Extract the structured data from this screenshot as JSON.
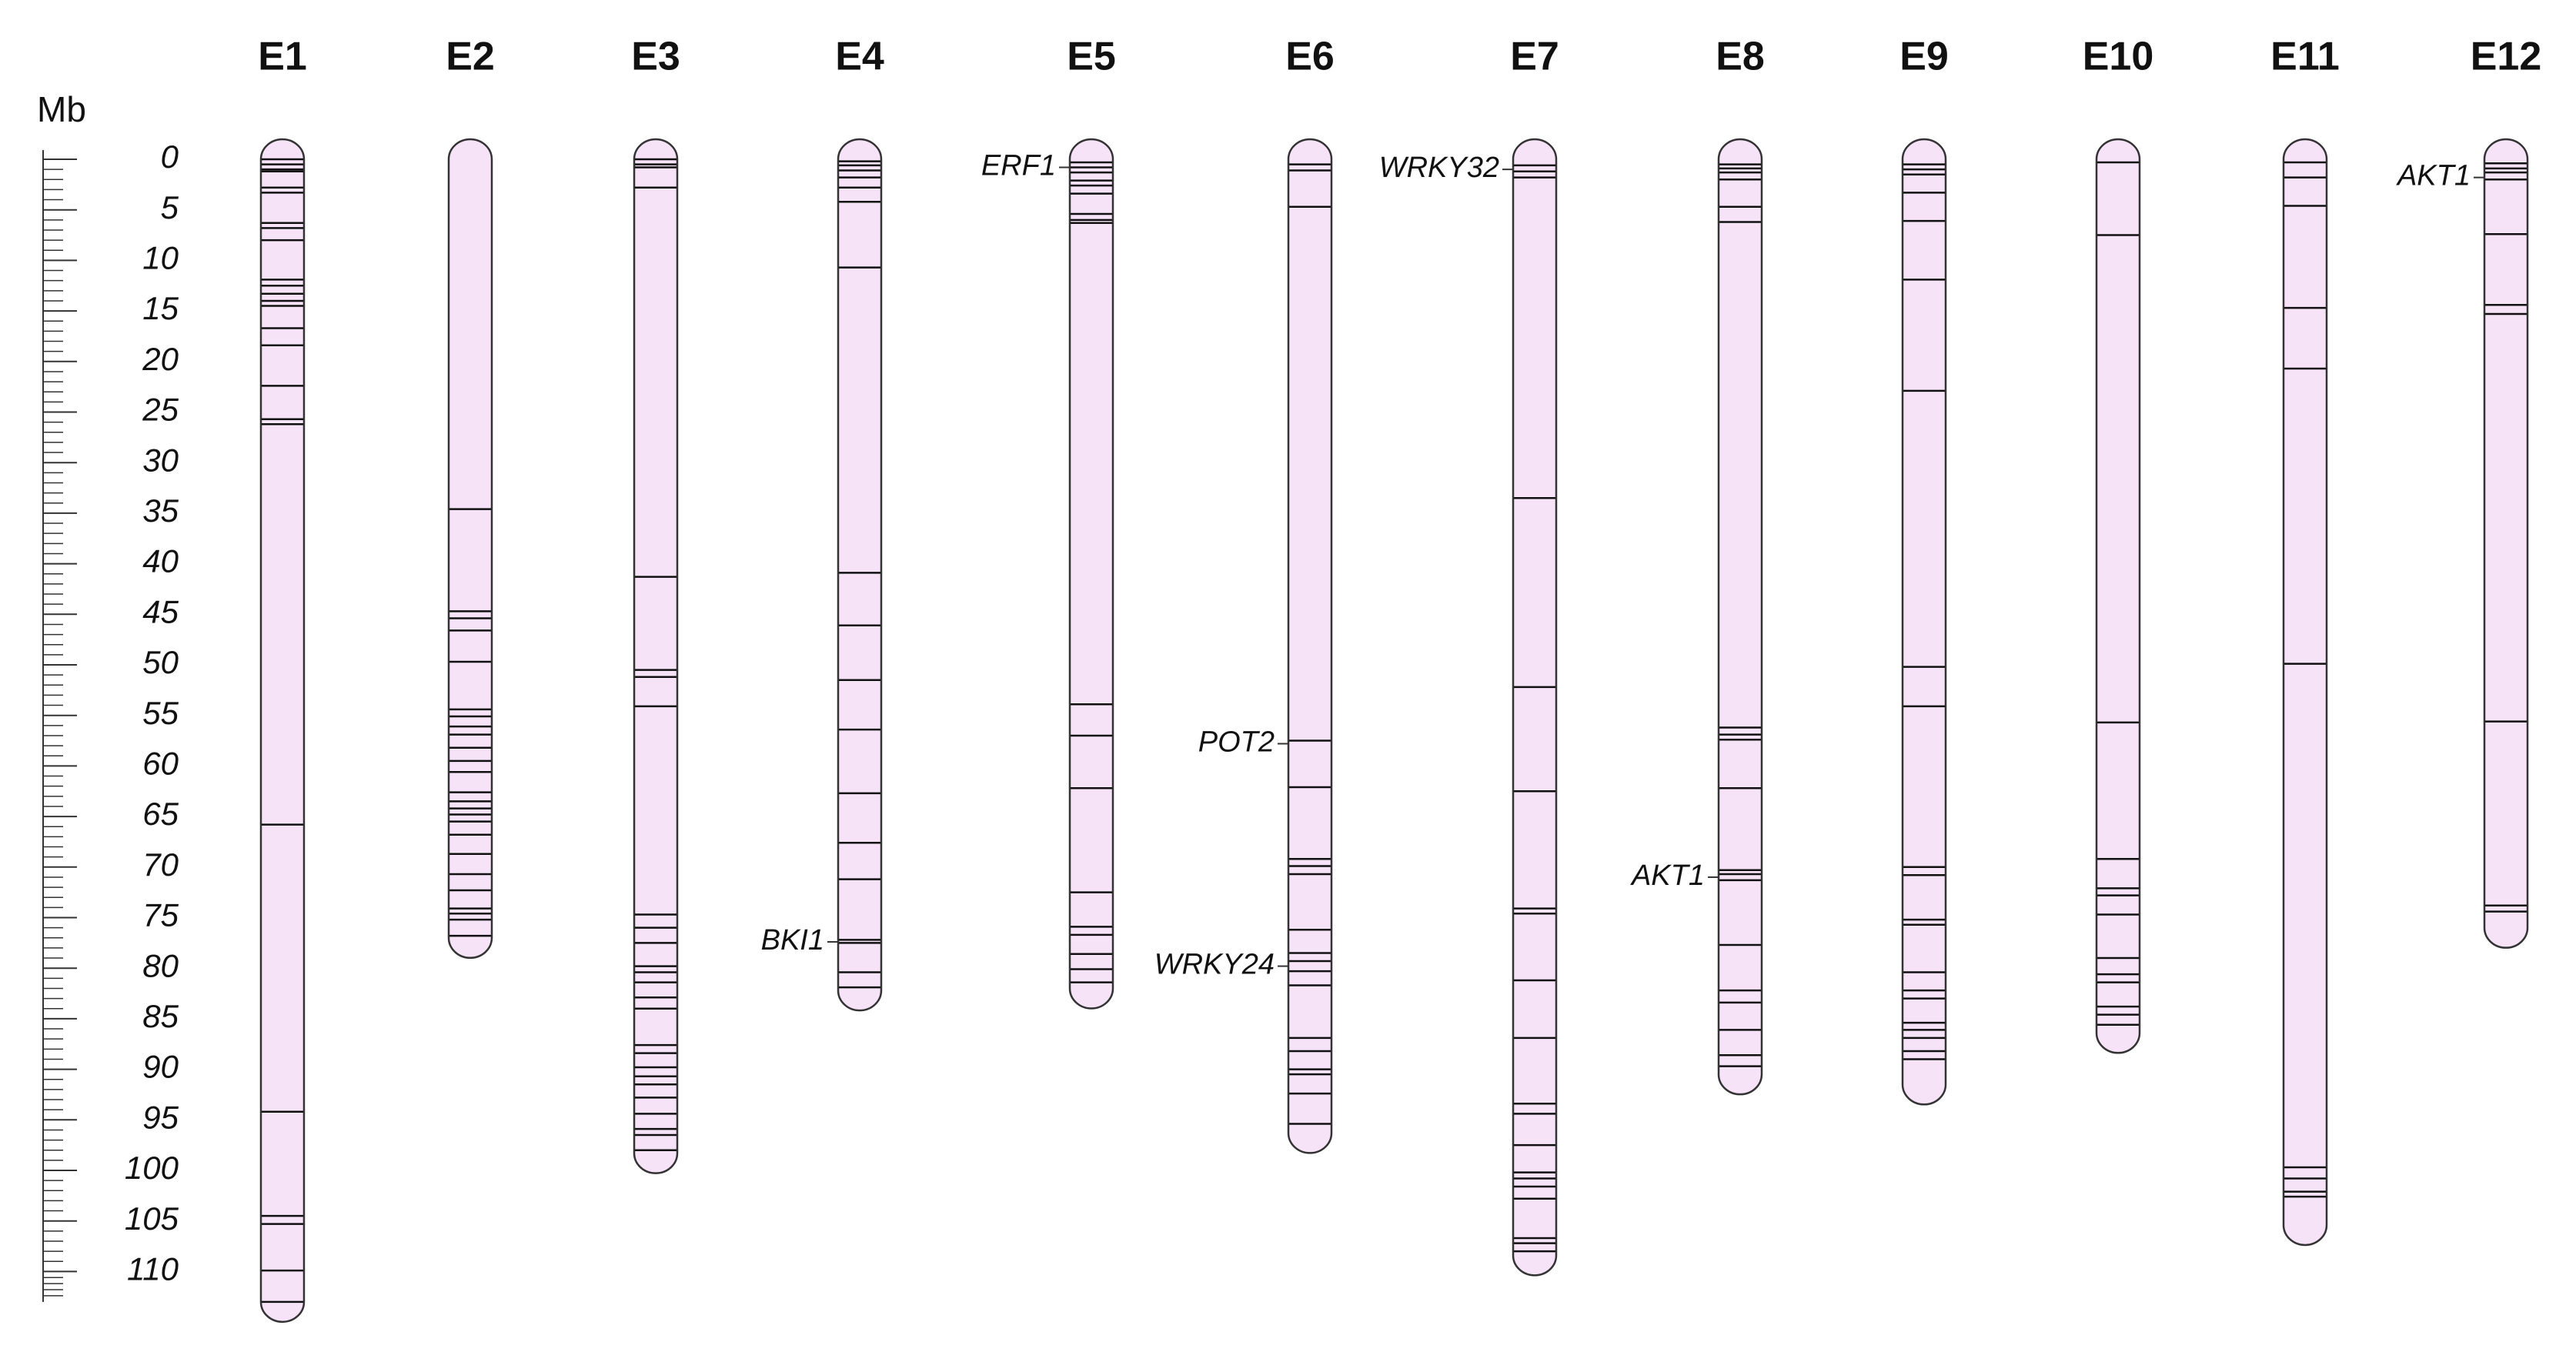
{
  "chart_data": {
    "type": "chromosome",
    "y_label": "Mb",
    "ylim": [
      0,
      113
    ],
    "yticks": [
      0,
      5,
      10,
      15,
      20,
      25,
      30,
      35,
      40,
      45,
      50,
      55,
      60,
      65,
      70,
      75,
      80,
      85,
      90,
      95,
      100,
      105,
      110
    ],
    "chromosomes": [
      {
        "name": "E1",
        "length": 113,
        "markers": [
          0,
          0.5,
          1,
          1.2,
          2.8,
          3.3,
          6.3,
          6.8,
          8,
          11.9,
          12.5,
          13.3,
          14,
          14.5,
          16.7,
          18.4,
          22.4,
          25.7,
          26.2,
          65.8,
          94.2,
          104.5,
          105.3,
          109.9,
          113
        ],
        "genes": []
      },
      {
        "name": "E2",
        "length": 77,
        "markers": [
          34.6,
          44.7,
          45.4,
          46.6,
          49.7,
          54.4,
          55.1,
          56.1,
          56.9,
          58.2,
          59.5,
          60.6,
          62.6,
          63.5,
          64.2,
          64.8,
          65.5,
          66.8,
          68.7,
          70.7,
          72.3,
          74.1,
          74.6,
          75.2,
          76.8
        ],
        "genes": []
      },
      {
        "name": "E3",
        "length": 98.3,
        "markers": [
          0,
          0.5,
          0.8,
          2.8,
          41.3,
          50.5,
          51.2,
          54.1,
          74.7,
          76,
          77.5,
          79.8,
          80.4,
          81.4,
          82.9,
          84,
          87.6,
          88.4,
          89.8,
          90.7,
          91.5,
          92.8,
          94.4,
          95.9,
          96.5,
          98
        ],
        "genes": []
      },
      {
        "name": "E4",
        "length": 82.2,
        "markers": [
          0.2,
          0.6,
          1.1,
          1.8,
          2.8,
          4.2,
          10.7,
          40.9,
          46.1,
          51.5,
          56.4,
          62.7,
          67.6,
          71.2,
          77.2,
          77.5,
          80.4,
          81.9
        ],
        "genes": [
          {
            "label": "BKI1",
            "position": 77.4
          }
        ]
      },
      {
        "name": "E5",
        "length": 82,
        "markers": [
          0.3,
          0.8,
          1.3,
          2.1,
          2.6,
          3.4,
          5.4,
          6,
          6.3,
          53.9,
          57,
          62.2,
          72.5,
          75.9,
          76.7,
          78.6,
          80.1,
          81.4
        ],
        "genes": [
          {
            "label": "ERF1",
            "position": 0.8
          }
        ]
      },
      {
        "name": "E6",
        "length": 96.3,
        "markers": [
          0.5,
          1.1,
          4.7,
          57.5,
          62.1,
          69.2,
          69.9,
          70.7,
          76.2,
          78.5,
          79.3,
          80.3,
          81.7,
          86.9,
          88.2,
          90,
          90.5,
          92.4,
          95.4
        ],
        "genes": [
          {
            "label": "POT2",
            "position": 57.8
          },
          {
            "label": "WRKY24",
            "position": 79.8
          }
        ]
      },
      {
        "name": "E7",
        "length": 108.4,
        "markers": [
          0.6,
          1.2,
          1.8,
          33.5,
          52.2,
          62.5,
          74.1,
          74.6,
          81.2,
          86.9,
          93.4,
          94.4,
          97.5,
          100.2,
          100.8,
          101.6,
          102.8,
          106.7,
          107.2,
          108
        ],
        "genes": [
          {
            "label": "WRKY32",
            "position": 1
          }
        ]
      },
      {
        "name": "E8",
        "length": 90.5,
        "markers": [
          0.5,
          0.9,
          1.3,
          2,
          4.7,
          6.2,
          56.2,
          56.9,
          57.4,
          62.2,
          70.3,
          70.7,
          71.3,
          77.7,
          82.2,
          83.4,
          86.1,
          88.6,
          89.7
        ],
        "genes": [
          {
            "label": "AKT1",
            "position": 71
          }
        ]
      },
      {
        "name": "E9",
        "length": 91.5,
        "markers": [
          0.5,
          1,
          1.5,
          3.3,
          6.1,
          11.9,
          22.9,
          50.2,
          54.1,
          70,
          70.8,
          75.2,
          75.7,
          80.4,
          82.2,
          83,
          85.4,
          86.1,
          86.9,
          88.2,
          89
        ],
        "genes": []
      },
      {
        "name": "E10",
        "length": 86.4,
        "markers": [
          0.3,
          7.5,
          55.7,
          69.2,
          72.1,
          72.8,
          74.7,
          79,
          80.6,
          81.4,
          83.8,
          84.6,
          85.6
        ],
        "genes": []
      },
      {
        "name": "E11",
        "length": 105.4,
        "markers": [
          0.3,
          1.8,
          4.6,
          14.7,
          20.7,
          49.9,
          99.7,
          100.8,
          102.1,
          102.6
        ],
        "genes": []
      },
      {
        "name": "E12",
        "length": 76,
        "markers": [
          0.4,
          0.9,
          1.3,
          2,
          7.4,
          14.4,
          15.3,
          55.6,
          73.8,
          74.4
        ],
        "genes": [
          {
            "label": "AKT1",
            "position": 1.8
          }
        ]
      }
    ]
  }
}
